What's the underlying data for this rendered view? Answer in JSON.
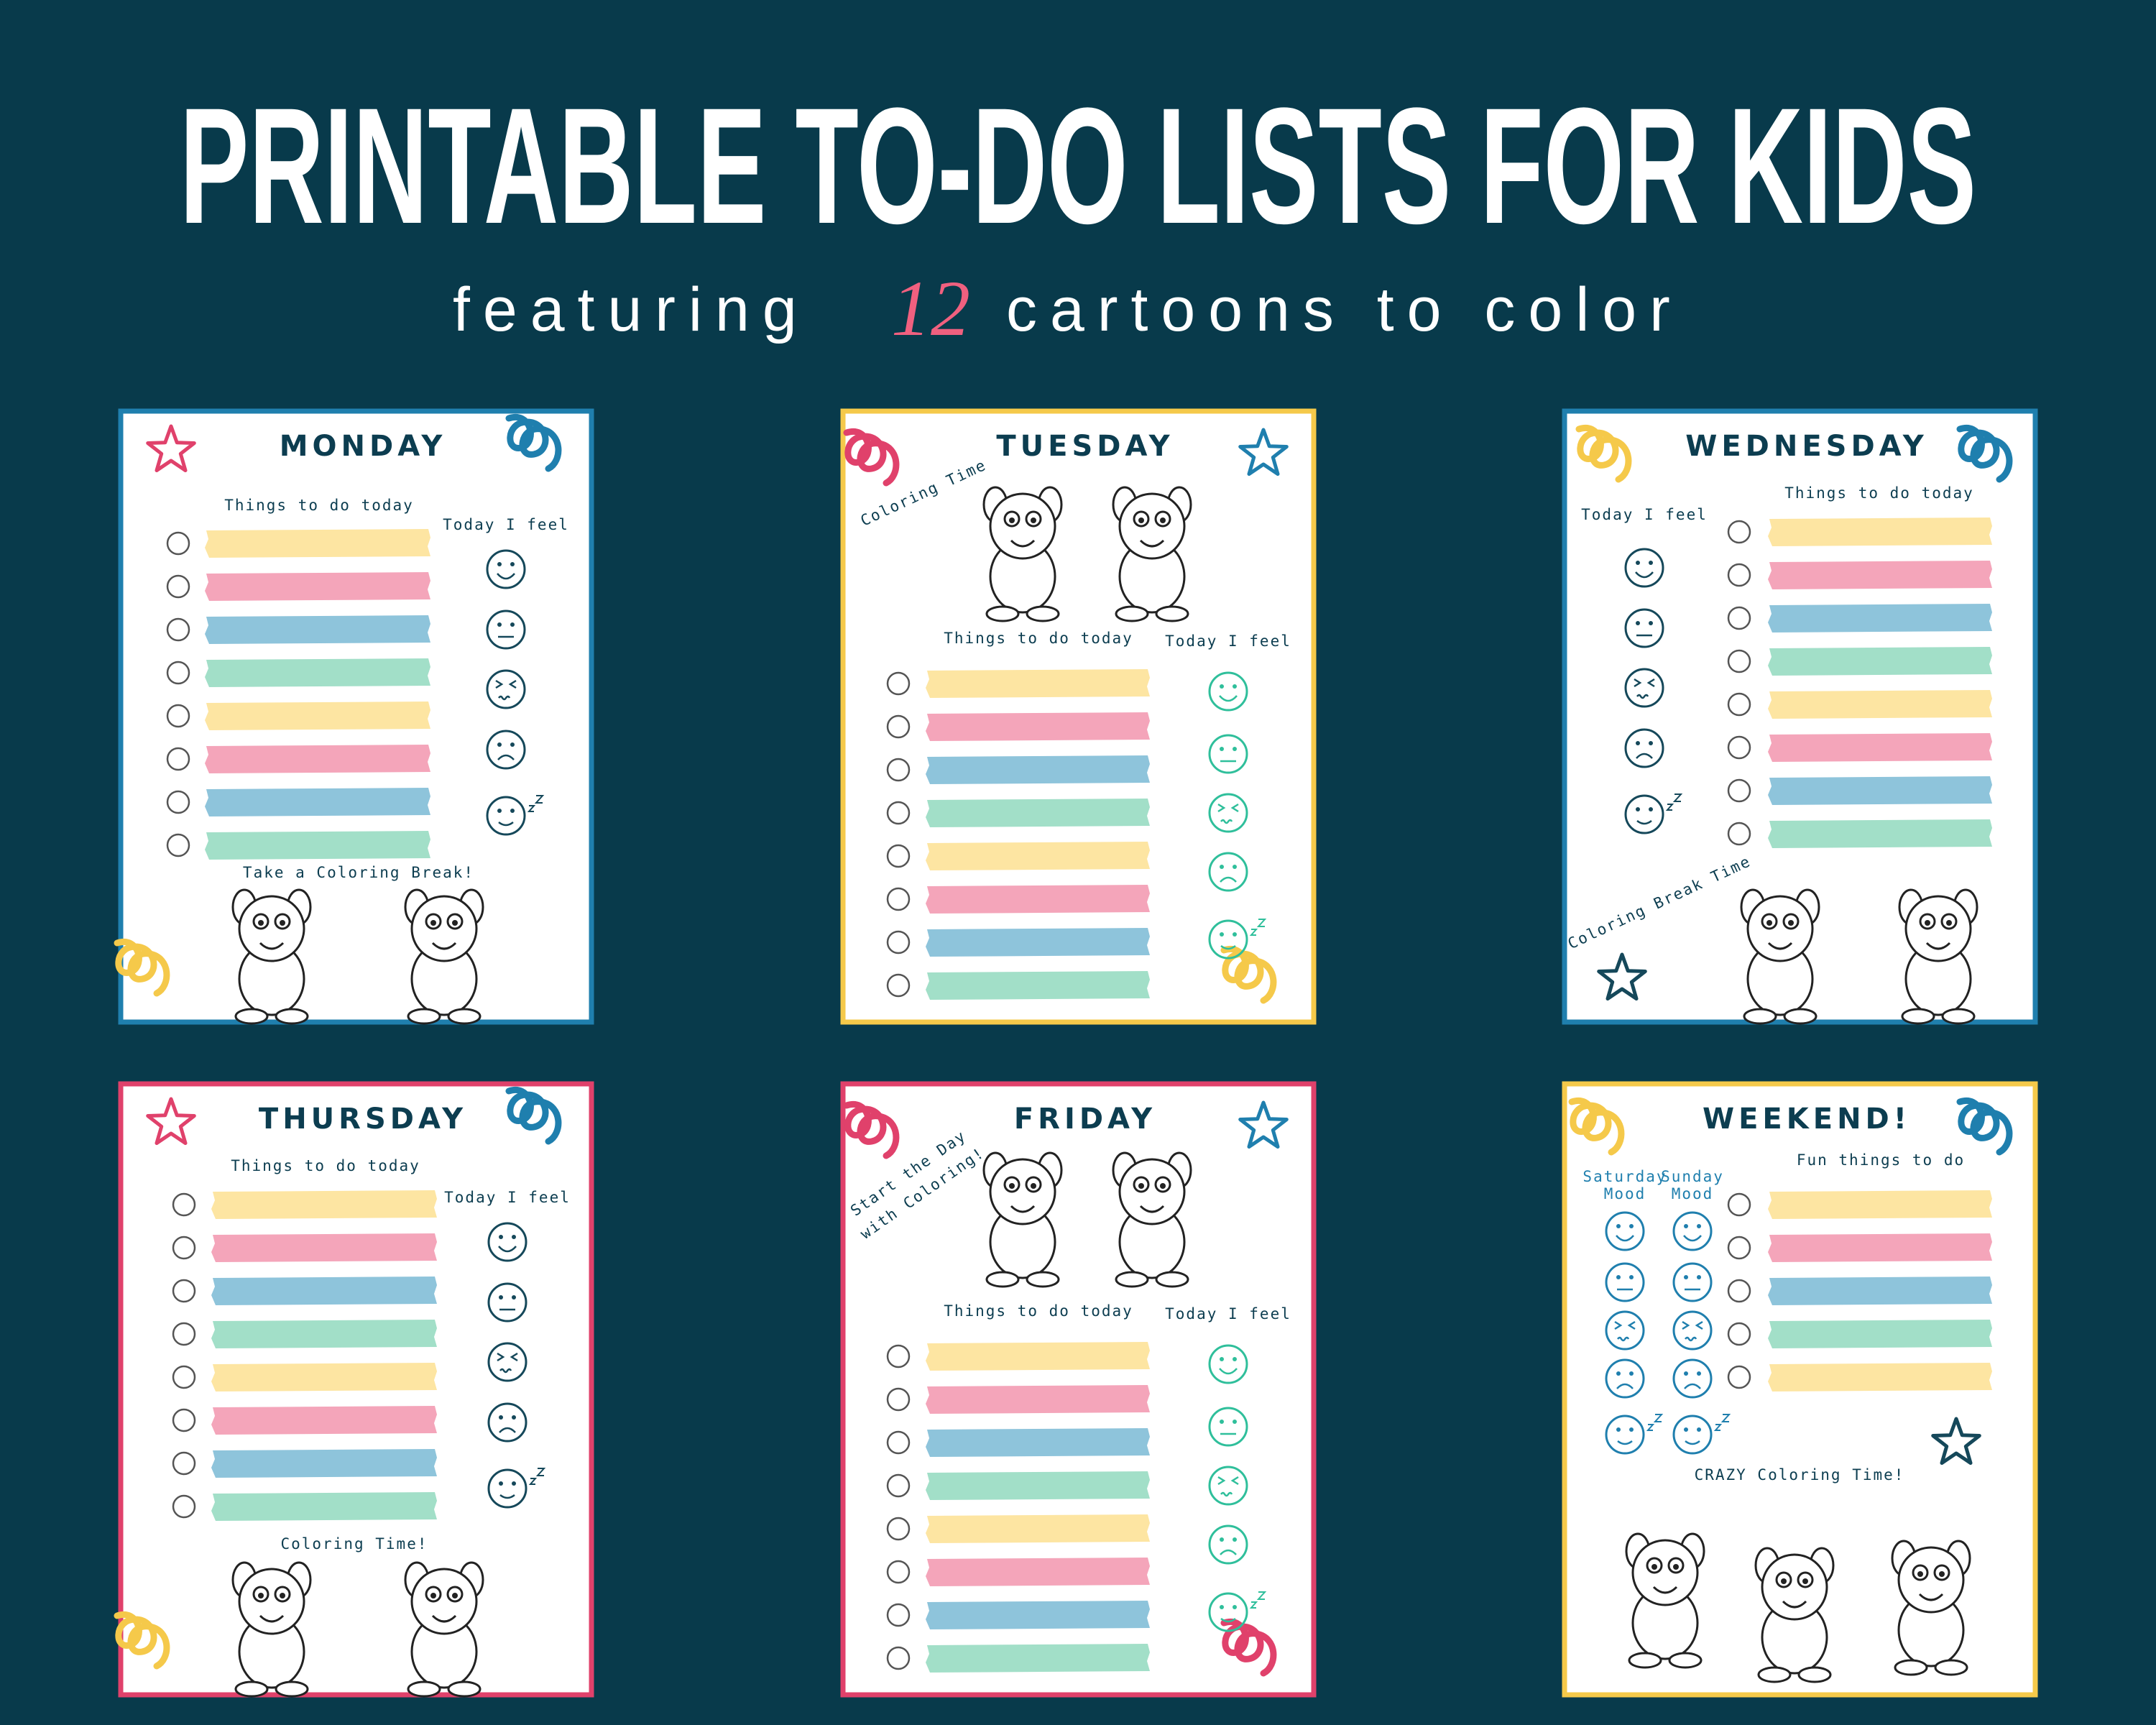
{
  "header": {
    "title": "PRINTABLE TO-DO LISTS FOR KIDS",
    "subtitle": [
      "featuring",
      "12",
      "cartoons to color"
    ]
  },
  "cards": [
    {
      "day": "MONDAY",
      "todo_label": "Things to do today",
      "mood_label": "Today I feel",
      "caption": [
        "Take a Coloring Break!"
      ]
    },
    {
      "day": "TUESDAY",
      "todo_label": "Things to do today",
      "mood_label": "Today I feel",
      "caption": [
        "Coloring Time"
      ]
    },
    {
      "day": "WEDNESDAY",
      "todo_label": "Things to do today",
      "mood_label": "Today I feel",
      "caption": [
        "Coloring Break Time"
      ]
    },
    {
      "day": "THURSDAY",
      "todo_label": "Things to do today",
      "mood_label": "Today I feel",
      "caption": [
        "Coloring Time!"
      ]
    },
    {
      "day": "FRIDAY",
      "todo_label": "Things to do today",
      "mood_label": "Today I feel",
      "caption": [
        "Start the Day",
        "with Coloring!"
      ]
    },
    {
      "day": "WEEKEND!",
      "todo_label": "Fun things to do",
      "mood_labels": [
        [
          "Saturday",
          "Mood"
        ],
        [
          "Sunday",
          "Mood"
        ]
      ],
      "caption": [
        "CRAZY Coloring Time!"
      ]
    }
  ]
}
